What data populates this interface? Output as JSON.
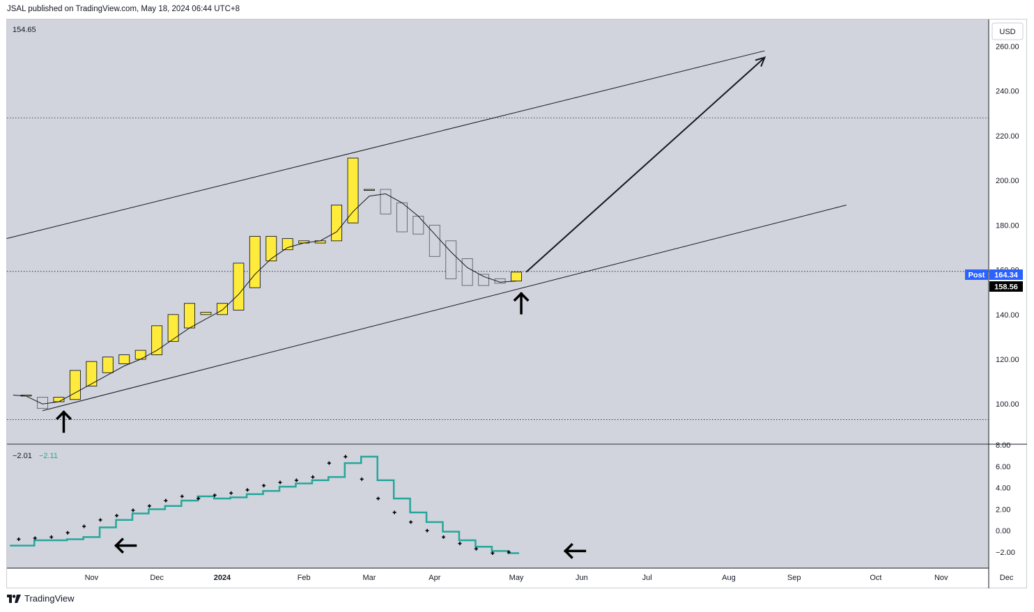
{
  "header": {
    "publisher_text": "JSAL published on TradingView.com, May 18, 2024 06:44 UTC+8"
  },
  "footer": {
    "brand": "TradingView"
  },
  "price_pane": {
    "top_left_value": "154.65",
    "currency": "USD",
    "post_label": "Post",
    "post_price": "164.34",
    "last_price": "158.56",
    "colors": {
      "up": "#ffeb3b",
      "down": "#d1d4dc",
      "outline": "#131722",
      "post_bg": "#2962ff",
      "last_bg": "#000000",
      "pane_bg": "#d1d4dc"
    }
  },
  "indicator_pane": {
    "value_1": "−2.01",
    "value_2": "−2.11",
    "colors": {
      "line": "#26a69a",
      "dots": "#000000"
    }
  },
  "chart_data": [
    {
      "type": "candlestick",
      "title": "Weekly price",
      "ylim": [
        82,
        272
      ],
      "y_ticks": [
        "100.00",
        "120.00",
        "140.00",
        "160.00",
        "180.00",
        "200.00",
        "220.00",
        "240.00",
        "260.00"
      ],
      "x_ticks": [
        "Nov",
        "Dec",
        "2024",
        "Feb",
        "Mar",
        "Apr",
        "May",
        "Jun",
        "Jul",
        "Aug",
        "Sep",
        "Oct",
        "Nov",
        "Dec"
      ],
      "x_tick_weeks": [
        3,
        7,
        11,
        16,
        20,
        24,
        29,
        33,
        37,
        42,
        46,
        51,
        55,
        59
      ],
      "candles": [
        {
          "w": -1,
          "o": 104,
          "c": 104
        },
        {
          "w": 0,
          "o": 103,
          "c": 98
        },
        {
          "w": 1,
          "o": 101,
          "c": 103
        },
        {
          "w": 2,
          "o": 102,
          "c": 115
        },
        {
          "w": 3,
          "o": 108,
          "c": 119
        },
        {
          "w": 4,
          "o": 114,
          "c": 121
        },
        {
          "w": 5,
          "o": 118,
          "c": 122
        },
        {
          "w": 6,
          "o": 120,
          "c": 124
        },
        {
          "w": 7,
          "o": 122,
          "c": 135
        },
        {
          "w": 8,
          "o": 128,
          "c": 140
        },
        {
          "w": 9,
          "o": 134,
          "c": 145
        },
        {
          "w": 10,
          "o": 140,
          "c": 141
        },
        {
          "w": 11,
          "o": 140,
          "c": 145
        },
        {
          "w": 12,
          "o": 142,
          "c": 163
        },
        {
          "w": 13,
          "o": 152,
          "c": 175
        },
        {
          "w": 14,
          "o": 164,
          "c": 175
        },
        {
          "w": 15,
          "o": 169,
          "c": 174
        },
        {
          "w": 16,
          "o": 172,
          "c": 173
        },
        {
          "w": 17,
          "o": 172,
          "c": 173
        },
        {
          "w": 18,
          "o": 173,
          "c": 189
        },
        {
          "w": 19,
          "o": 181,
          "c": 210
        },
        {
          "w": 20,
          "o": 196,
          "c": 196
        },
        {
          "w": 21,
          "o": 196,
          "c": 185
        },
        {
          "w": 22,
          "o": 190,
          "c": 177
        },
        {
          "w": 23,
          "o": 184,
          "c": 176
        },
        {
          "w": 24,
          "o": 180,
          "c": 166
        },
        {
          "w": 25,
          "o": 173,
          "c": 156
        },
        {
          "w": 26,
          "o": 165,
          "c": 153
        },
        {
          "w": 27,
          "o": 158,
          "c": 153
        },
        {
          "w": 28,
          "o": 156,
          "c": 154
        },
        {
          "w": 29,
          "o": 155,
          "c": 159
        }
      ],
      "moving_average": [
        {
          "w": -1.8,
          "v": 104
        },
        {
          "w": -1,
          "v": 103.5
        },
        {
          "w": 0,
          "v": 100
        },
        {
          "w": 1,
          "v": 101
        },
        {
          "w": 2,
          "v": 105
        },
        {
          "w": 3,
          "v": 109
        },
        {
          "w": 4,
          "v": 113
        },
        {
          "w": 5,
          "v": 117
        },
        {
          "w": 6,
          "v": 120
        },
        {
          "w": 7,
          "v": 124
        },
        {
          "w": 8,
          "v": 129
        },
        {
          "w": 9,
          "v": 134
        },
        {
          "w": 10,
          "v": 138
        },
        {
          "w": 11,
          "v": 142
        },
        {
          "w": 12,
          "v": 149
        },
        {
          "w": 13,
          "v": 158
        },
        {
          "w": 14,
          "v": 165
        },
        {
          "w": 15,
          "v": 170
        },
        {
          "w": 16,
          "v": 172
        },
        {
          "w": 17,
          "v": 173
        },
        {
          "w": 18,
          "v": 177
        },
        {
          "w": 19,
          "v": 186
        },
        {
          "w": 20,
          "v": 193
        },
        {
          "w": 21,
          "v": 194
        },
        {
          "w": 22,
          "v": 190
        },
        {
          "w": 23,
          "v": 184
        },
        {
          "w": 24,
          "v": 176
        },
        {
          "w": 25,
          "v": 168
        },
        {
          "w": 26,
          "v": 161
        },
        {
          "w": 27,
          "v": 157
        },
        {
          "w": 28,
          "v": 154.5
        },
        {
          "w": 29,
          "v": 155
        }
      ],
      "dotted_levels": [
        228,
        93,
        159.3
      ],
      "trendlines": [
        {
          "w1": -2.2,
          "v1": 174,
          "w2": 44.2,
          "v2": 258
        },
        {
          "w1": 0,
          "v1": 97,
          "w2": 49.2,
          "v2": 189
        },
        {
          "w1": 29.6,
          "v1": 159,
          "w2": 44.2,
          "v2": 255,
          "arrow": true
        }
      ],
      "up_arrows": [
        {
          "w": 1.3,
          "v": 92
        },
        {
          "w": 29.3,
          "v": 145
        }
      ]
    },
    {
      "type": "line",
      "title": "Indicator",
      "ylim": [
        -3.5,
        8
      ],
      "y_ticks": [
        "−2.00",
        "0.00",
        "2.00",
        "4.00",
        "6.00",
        "8.00"
      ],
      "step_line": [
        {
          "w": -1.5,
          "v": -1.4
        },
        {
          "w": 0,
          "v": -0.9
        },
        {
          "w": 1,
          "v": -0.9
        },
        {
          "w": 2,
          "v": -0.8
        },
        {
          "w": 3,
          "v": -0.6
        },
        {
          "w": 4,
          "v": 0.3
        },
        {
          "w": 5,
          "v": 1.0
        },
        {
          "w": 6,
          "v": 1.6
        },
        {
          "w": 7,
          "v": 2.0
        },
        {
          "w": 8,
          "v": 2.3
        },
        {
          "w": 9,
          "v": 2.8
        },
        {
          "w": 10,
          "v": 3.2
        },
        {
          "w": 11,
          "v": 3.0
        },
        {
          "w": 12,
          "v": 3.1
        },
        {
          "w": 13,
          "v": 3.4
        },
        {
          "w": 14,
          "v": 3.7
        },
        {
          "w": 15,
          "v": 4.1
        },
        {
          "w": 16,
          "v": 4.4
        },
        {
          "w": 17,
          "v": 4.7
        },
        {
          "w": 18,
          "v": 5.0
        },
        {
          "w": 19,
          "v": 6.3
        },
        {
          "w": 20,
          "v": 6.9
        },
        {
          "w": 21,
          "v": 4.7
        },
        {
          "w": 22,
          "v": 3.0
        },
        {
          "w": 23,
          "v": 1.7
        },
        {
          "w": 24,
          "v": 0.8
        },
        {
          "w": 25,
          "v": -0.1
        },
        {
          "w": 26,
          "v": -0.9
        },
        {
          "w": 27,
          "v": -1.5
        },
        {
          "w": 28,
          "v": -1.9
        },
        {
          "w": 29,
          "v": -2.1
        }
      ],
      "dots": [
        {
          "w": -1,
          "v": -0.8
        },
        {
          "w": 0,
          "v": -0.7
        },
        {
          "w": 1,
          "v": -0.6
        },
        {
          "w": 2,
          "v": -0.2
        },
        {
          "w": 3,
          "v": 0.4
        },
        {
          "w": 4,
          "v": 1.0
        },
        {
          "w": 5,
          "v": 1.4
        },
        {
          "w": 6,
          "v": 1.9
        },
        {
          "w": 7,
          "v": 2.3
        },
        {
          "w": 8,
          "v": 2.8
        },
        {
          "w": 9,
          "v": 3.2
        },
        {
          "w": 10,
          "v": 3.0
        },
        {
          "w": 11,
          "v": 3.3
        },
        {
          "w": 12,
          "v": 3.5
        },
        {
          "w": 13,
          "v": 3.8
        },
        {
          "w": 14,
          "v": 4.2
        },
        {
          "w": 15,
          "v": 4.5
        },
        {
          "w": 16,
          "v": 4.7
        },
        {
          "w": 17,
          "v": 5.0
        },
        {
          "w": 18,
          "v": 6.3
        },
        {
          "w": 19,
          "v": 6.9
        },
        {
          "w": 20,
          "v": 4.8
        },
        {
          "w": 21,
          "v": 3.0
        },
        {
          "w": 22,
          "v": 1.7
        },
        {
          "w": 23,
          "v": 0.8
        },
        {
          "w": 24,
          "v": 0.0
        },
        {
          "w": 25,
          "v": -0.6
        },
        {
          "w": 26,
          "v": -1.2
        },
        {
          "w": 27,
          "v": -1.7
        },
        {
          "w": 28,
          "v": -2.1
        },
        {
          "w": 29,
          "v": -2.0
        }
      ],
      "left_arrows": [
        {
          "w": 4.5,
          "v": -1.4
        },
        {
          "w": 32,
          "v": -1.9
        }
      ]
    }
  ]
}
